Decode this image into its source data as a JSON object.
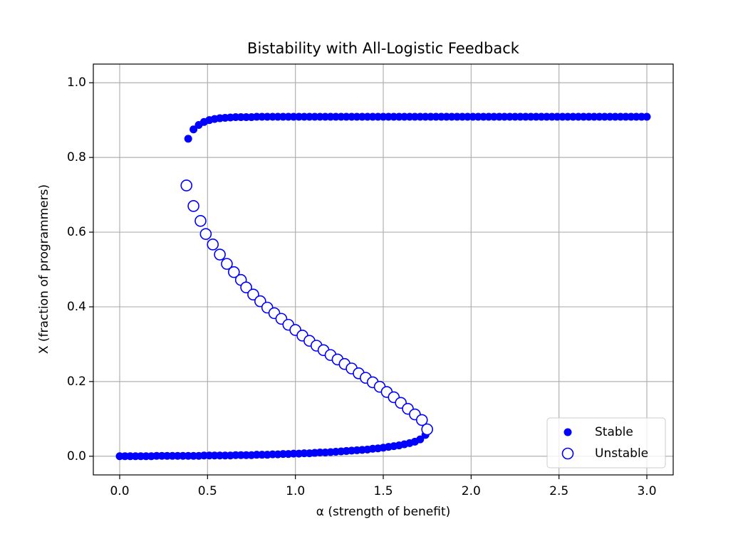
{
  "chart_data": {
    "type": "scatter",
    "title": "Bistability with All-Logistic Feedback",
    "x_label": "α (strength of benefit)",
    "y_label": "X (fraction of programmers)",
    "xlim": [
      -0.15,
      3.15
    ],
    "ylim": [
      -0.05,
      1.05
    ],
    "xticks": [
      {
        "value": 0,
        "label": "0.0"
      },
      0.5,
      {
        "value": 1,
        "label": "1.0"
      },
      1.5,
      {
        "value": 2,
        "label": "2.0"
      },
      2.5,
      {
        "value": 3,
        "label": "3.0"
      }
    ],
    "yticks": [
      {
        "value": 0,
        "label": "0.0"
      },
      0.2,
      0.4,
      0.6,
      0.8,
      {
        "value": 1,
        "label": "1.0"
      }
    ],
    "grid": true,
    "legend": "lower right",
    "series": [
      {
        "name": "Stable",
        "color": "#0000ff",
        "marker": "filled",
        "x": [
          0,
          0.03,
          0.06,
          0.09,
          0.12,
          0.15,
          0.18,
          0.21,
          0.24,
          0.27,
          0.3,
          0.33,
          0.36,
          0.39,
          0.42,
          0.45,
          0.48,
          0.51,
          0.54,
          0.57,
          0.6,
          0.63,
          0.66,
          0.69,
          0.72,
          0.75,
          0.78,
          0.81,
          0.84,
          0.87,
          0.9,
          0.93,
          0.96,
          0.99,
          1.02,
          1.05,
          1.08,
          1.11,
          1.14,
          1.17,
          1.2,
          1.23,
          1.26,
          1.29,
          1.32,
          1.35,
          1.38,
          1.41,
          1.44,
          1.47,
          1.5,
          1.53,
          1.56,
          1.59,
          1.62,
          1.65,
          1.68,
          1.71,
          1.74,
          0.39,
          0.42,
          0.45,
          0.48,
          0.51,
          0.54,
          0.57,
          0.6,
          0.63,
          0.66,
          0.69,
          0.72,
          0.75,
          0.78,
          0.81,
          0.84,
          0.87,
          0.9,
          0.93,
          0.96,
          0.99,
          1.02,
          1.05,
          1.08,
          1.11,
          1.14,
          1.17,
          1.2,
          1.23,
          1.26,
          1.29,
          1.32,
          1.35,
          1.38,
          1.41,
          1.44,
          1.47,
          1.5,
          1.53,
          1.56,
          1.59,
          1.62,
          1.65,
          1.68,
          1.71,
          1.74,
          1.77,
          1.8,
          1.83,
          1.86,
          1.89,
          1.92,
          1.95,
          1.98,
          2.01,
          2.04,
          2.07,
          2.1,
          2.13,
          2.16,
          2.19,
          2.22,
          2.25,
          2.28,
          2.31,
          2.34,
          2.37,
          2.4,
          2.43,
          2.46,
          2.49,
          2.52,
          2.55,
          2.58,
          2.61,
          2.64,
          2.67,
          2.7,
          2.73,
          2.76,
          2.79,
          2.82,
          2.85,
          2.88,
          2.91,
          2.94,
          2.97,
          3.0
        ],
        "values": [
          0,
          0,
          0,
          0,
          0,
          0,
          0,
          0.001,
          0.001,
          0.001,
          0.001,
          0.001,
          0.001,
          0.001,
          0.001,
          0.001,
          0.002,
          0.002,
          0.002,
          0.002,
          0.002,
          0.002,
          0.003,
          0.003,
          0.003,
          0.003,
          0.004,
          0.004,
          0.004,
          0.005,
          0.005,
          0.006,
          0.006,
          0.007,
          0.007,
          0.008,
          0.008,
          0.009,
          0.01,
          0.01,
          0.011,
          0.012,
          0.013,
          0.014,
          0.015,
          0.016,
          0.017,
          0.018,
          0.02,
          0.021,
          0.023,
          0.025,
          0.027,
          0.029,
          0.032,
          0.035,
          0.039,
          0.045,
          0.057,
          0.85,
          0.875,
          0.887,
          0.895,
          0.9,
          0.903,
          0.905,
          0.906,
          0.907,
          0.908,
          0.908,
          0.908,
          0.908,
          0.909,
          0.909,
          0.909,
          0.909,
          0.909,
          0.909,
          0.909,
          0.909,
          0.909,
          0.909,
          0.909,
          0.909,
          0.909,
          0.909,
          0.909,
          0.909,
          0.909,
          0.909,
          0.909,
          0.909,
          0.909,
          0.909,
          0.909,
          0.909,
          0.909,
          0.909,
          0.909,
          0.909,
          0.909,
          0.909,
          0.909,
          0.909,
          0.909,
          0.909,
          0.909,
          0.909,
          0.909,
          0.909,
          0.909,
          0.909,
          0.909,
          0.909,
          0.909,
          0.909,
          0.909,
          0.909,
          0.909,
          0.909,
          0.909,
          0.909,
          0.909,
          0.909,
          0.909,
          0.909,
          0.909,
          0.909,
          0.909,
          0.909,
          0.909,
          0.909,
          0.909,
          0.909,
          0.909,
          0.909,
          0.909,
          0.909,
          0.909,
          0.909,
          0.909,
          0.909,
          0.909,
          0.909,
          0.909,
          0.909,
          0.909
        ]
      },
      {
        "name": "Unstable",
        "color": "#0000ff",
        "marker": "open",
        "x": [
          0.38,
          0.42,
          0.46,
          0.49,
          0.53,
          0.57,
          0.61,
          0.65,
          0.69,
          0.72,
          0.76,
          0.8,
          0.84,
          0.88,
          0.92,
          0.96,
          1.0,
          1.04,
          1.08,
          1.12,
          1.16,
          1.2,
          1.24,
          1.28,
          1.32,
          1.36,
          1.4,
          1.44,
          1.48,
          1.52,
          1.56,
          1.6,
          1.64,
          1.68,
          1.72,
          1.75
        ],
        "values": [
          0.725,
          0.67,
          0.63,
          0.595,
          0.567,
          0.54,
          0.515,
          0.493,
          0.472,
          0.452,
          0.433,
          0.415,
          0.398,
          0.383,
          0.368,
          0.352,
          0.338,
          0.323,
          0.309,
          0.296,
          0.284,
          0.271,
          0.259,
          0.247,
          0.235,
          0.222,
          0.21,
          0.198,
          0.186,
          0.172,
          0.158,
          0.143,
          0.127,
          0.112,
          0.097,
          0.072
        ]
      }
    ]
  }
}
